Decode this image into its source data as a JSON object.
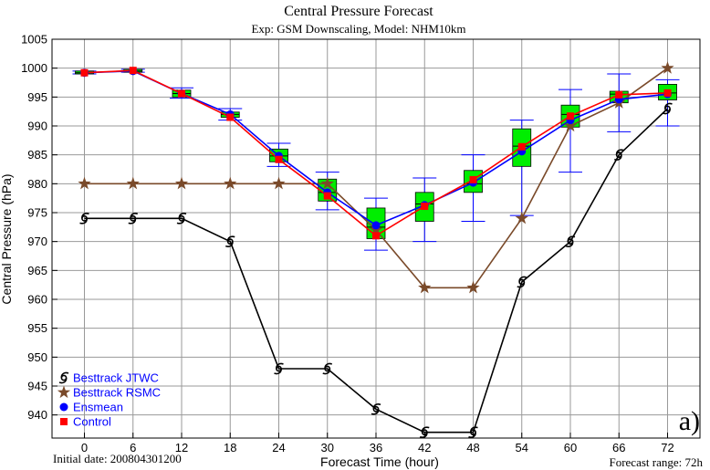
{
  "chart_data": {
    "type": "line",
    "title": "Central Pressure Forecast",
    "subtitle": "Exp: GSM Downscaling, Model: NHM10km",
    "xlabel": "Forecast Time (hour)",
    "ylabel": "Central Pressure (hPa)",
    "panel_label": "a)",
    "footer_left": "Initial date: 200804301200",
    "footer_right": "Forecast range: 72h",
    "x": [
      0,
      6,
      12,
      18,
      24,
      30,
      36,
      42,
      48,
      54,
      60,
      66,
      72
    ],
    "x_ticks": [
      "0",
      "6",
      "12",
      "18",
      "24",
      "30",
      "36",
      "42",
      "48",
      "54",
      "60",
      "66",
      "72"
    ],
    "y_ticks": [
      "940",
      "945",
      "950",
      "955",
      "960",
      "965",
      "970",
      "975",
      "980",
      "985",
      "990",
      "995",
      "1000",
      "1005"
    ],
    "xlim": [
      -4,
      76
    ],
    "ylim": [
      936,
      1005
    ],
    "grid": true,
    "legend_position": "bottom-left",
    "series": [
      {
        "name": "Besttrack JTWC",
        "color": "#000000",
        "marker": "typhoon-symbol",
        "x": [
          0,
          6,
          12,
          18,
          24,
          30,
          36,
          42,
          48,
          54,
          60,
          66,
          72
        ],
        "values": [
          974,
          974,
          974,
          970,
          948,
          948,
          941,
          937,
          937,
          963,
          970,
          985,
          993
        ]
      },
      {
        "name": "Besttrack RSMC",
        "color": "#7a4a2a",
        "marker": "star",
        "x": [
          0,
          6,
          12,
          18,
          24,
          30,
          36,
          42,
          48,
          54,
          60,
          66,
          72
        ],
        "values": [
          980,
          980,
          980,
          980,
          980,
          980,
          972,
          962,
          962,
          974,
          990,
          994,
          1000
        ]
      },
      {
        "name": "Ensmean",
        "color": "#0000ff",
        "marker": "circle",
        "x": [
          0,
          6,
          12,
          18,
          24,
          30,
          36,
          42,
          48,
          54,
          60,
          66,
          72
        ],
        "values": [
          999.2,
          999.5,
          995.6,
          992.0,
          984.8,
          978.5,
          972.8,
          976.3,
          980.2,
          985.6,
          991.0,
          994.6,
          995.5
        ]
      },
      {
        "name": "Control",
        "color": "#ff0000",
        "marker": "square",
        "x": [
          0,
          6,
          12,
          18,
          24,
          30,
          36,
          42,
          48,
          54,
          60,
          66,
          72
        ],
        "values": [
          999.2,
          999.6,
          995.6,
          991.5,
          984.2,
          977.9,
          971.0,
          976.1,
          980.7,
          986.4,
          991.7,
          995.4,
          995.7
        ]
      }
    ],
    "boxplot": {
      "color": "#00ee00",
      "whisker_color": "#0000ff",
      "x": [
        0,
        6,
        12,
        18,
        24,
        30,
        36,
        42,
        48,
        54,
        60,
        66,
        72
      ],
      "whisker_low": [
        999.0,
        999.3,
        994.8,
        991.0,
        983.0,
        975.5,
        968.5,
        970.0,
        973.5,
        974.5,
        982.0,
        989.0,
        990.0
      ],
      "q1": [
        999.0,
        999.3,
        995.0,
        991.5,
        983.8,
        977.0,
        970.5,
        973.5,
        978.5,
        983.0,
        989.8,
        994.0,
        994.5
      ],
      "median": [
        999.2,
        999.5,
        995.6,
        992.0,
        984.8,
        978.5,
        972.5,
        976.5,
        980.0,
        986.5,
        992.0,
        995.5,
        995.7
      ],
      "q3": [
        999.5,
        999.8,
        996.2,
        992.4,
        986.0,
        980.8,
        975.8,
        978.5,
        982.3,
        989.5,
        993.6,
        996.0,
        997.2
      ],
      "whisker_high": [
        999.5,
        999.8,
        996.6,
        993.0,
        987.0,
        982.0,
        977.5,
        981.0,
        985.0,
        991.0,
        996.3,
        999.0,
        998.0
      ]
    }
  }
}
